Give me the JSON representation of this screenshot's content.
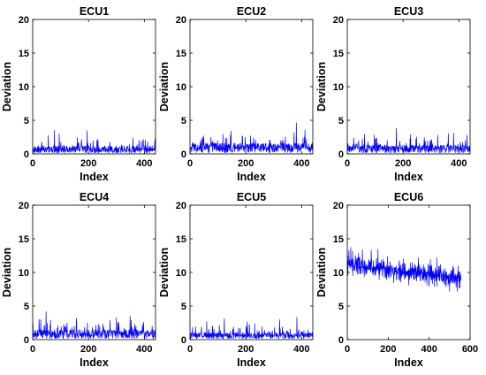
{
  "chart_data": [
    {
      "type": "line",
      "title": "ECU1",
      "xlabel": "Index",
      "ylabel": "Deviation",
      "xlim": [
        0,
        440
      ],
      "ylim": [
        0,
        20
      ],
      "xticks": [
        "0",
        "200",
        "400"
      ],
      "yticks": [
        "0",
        "5",
        "10",
        "15",
        "20"
      ],
      "grid": false,
      "series": [
        {
          "color": "#0000ff",
          "n_points": 440,
          "mean": 0.9,
          "spread": 1.6,
          "max": 4.2
        }
      ]
    },
    {
      "type": "line",
      "title": "ECU2",
      "xlabel": "Index",
      "ylabel": "Deviation",
      "xlim": [
        0,
        440
      ],
      "ylim": [
        0,
        20
      ],
      "xticks": [
        "0",
        "200",
        "400"
      ],
      "yticks": [
        "0",
        "5",
        "10",
        "15",
        "20"
      ],
      "grid": false,
      "series": [
        {
          "color": "#0000ff",
          "n_points": 440,
          "mean": 1.2,
          "spread": 2.0,
          "max": 5.3
        }
      ]
    },
    {
      "type": "line",
      "title": "ECU3",
      "xlabel": "Index",
      "ylabel": "Deviation",
      "xlim": [
        0,
        440
      ],
      "ylim": [
        0,
        20
      ],
      "xticks": [
        "0",
        "200",
        "400"
      ],
      "yticks": [
        "0",
        "5",
        "10",
        "15",
        "20"
      ],
      "grid": false,
      "series": [
        {
          "color": "#0000ff",
          "n_points": 440,
          "mean": 1.0,
          "spread": 1.8,
          "max": 4.9
        }
      ]
    },
    {
      "type": "line",
      "title": "ECU4",
      "xlabel": "Index",
      "ylabel": "Deviation",
      "xlim": [
        0,
        440
      ],
      "ylim": [
        0,
        20
      ],
      "xticks": [
        "0",
        "200",
        "400"
      ],
      "yticks": [
        "0",
        "5",
        "10",
        "15",
        "20"
      ],
      "grid": false,
      "series": [
        {
          "color": "#0000ff",
          "n_points": 440,
          "mean": 1.1,
          "spread": 1.9,
          "max": 4.7
        }
      ]
    },
    {
      "type": "line",
      "title": "ECU5",
      "xlabel": "Index",
      "ylabel": "Deviation",
      "xlim": [
        0,
        440
      ],
      "ylim": [
        0,
        20
      ],
      "xticks": [
        "0",
        "200",
        "400"
      ],
      "yticks": [
        "0",
        "5",
        "10",
        "15",
        "20"
      ],
      "grid": false,
      "series": [
        {
          "color": "#0000ff",
          "n_points": 440,
          "mean": 0.8,
          "spread": 1.5,
          "max": 3.5
        }
      ]
    },
    {
      "type": "line",
      "title": "ECU6",
      "xlabel": "Index",
      "ylabel": "Deviation",
      "xlim": [
        0,
        600
      ],
      "ylim": [
        0,
        20
      ],
      "xticks": [
        "0",
        "200",
        "400",
        "600"
      ],
      "yticks": [
        "0",
        "5",
        "10",
        "15",
        "20"
      ],
      "grid": false,
      "series": [
        {
          "color": "#0000ff",
          "n_points": 555,
          "start_mean": 11.3,
          "end_mean": 9.0,
          "spread": 1.3,
          "max": 14.8,
          "min": 7.2
        }
      ]
    }
  ]
}
